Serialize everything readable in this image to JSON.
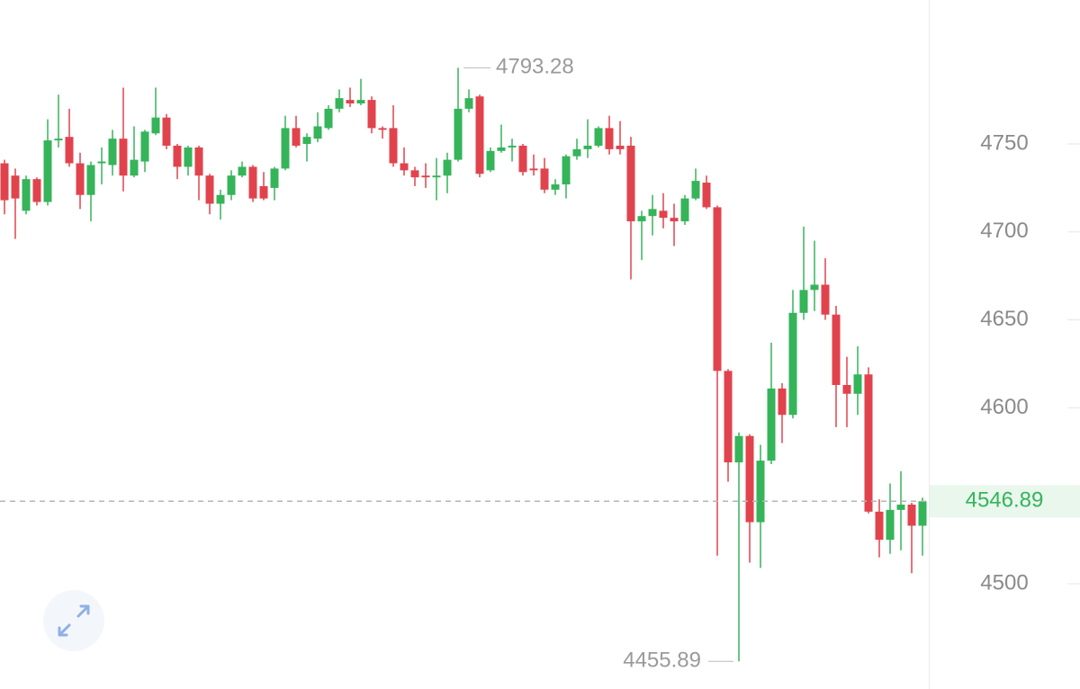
{
  "chart_data": {
    "type": "candlestick",
    "ylim": [
      4440.2,
      4831.8
    ],
    "yticks": [
      4500,
      4550,
      4600,
      4650,
      4700,
      4750
    ],
    "up_color": "#35b45a",
    "down_color": "#e1434d",
    "open": [
      4739,
      4732,
      4712,
      4730,
      4717,
      4752,
      4754,
      4739,
      4721,
      4739,
      4738,
      4753,
      4732,
      4740,
      4756,
      4765,
      4749,
      4737,
      4748,
      4732,
      4716,
      4721,
      4732,
      4737,
      4726,
      4725,
      4736,
      4759,
      4750,
      4753,
      4759,
      4770,
      4775,
      4773,
      4775,
      4759,
      4759,
      4739,
      4735,
      4732,
      4731,
      4732,
      4741,
      4770,
      4777,
      4735,
      4746,
      4748,
      4749,
      4736,
      4736,
      4724,
      4727,
      4743,
      4747,
      4749,
      4759,
      4749,
      4749,
      4706,
      4709,
      4712,
      4708,
      4706,
      4719,
      4728,
      4714,
      4621,
      4569,
      4584,
      4535,
      4570,
      4611,
      4596,
      4654,
      4667,
      4670,
      4653,
      4613,
      4608,
      4619,
      4541,
      4525,
      4542,
      4545,
      4533
    ],
    "high": [
      4741,
      4736,
      4732,
      4731,
      4764,
      4778,
      4770,
      4745,
      4740,
      4748,
      4758,
      4782,
      4760,
      4758,
      4782,
      4767,
      4750,
      4749,
      4749,
      4733,
      4724,
      4735,
      4740,
      4738,
      4734,
      4737,
      4766,
      4766,
      4756,
      4768,
      4772,
      4781,
      4782,
      4787,
      4777,
      4760,
      4772,
      4748,
      4737,
      4739,
      4742,
      4745,
      4793.28,
      4781,
      4778,
      4748,
      4761,
      4753,
      4750,
      4744,
      4742,
      4730,
      4744,
      4753,
      4764,
      4760,
      4766,
      4763,
      4754,
      4712,
      4721,
      4722,
      4716,
      4721,
      4736,
      4732,
      4715,
      4622,
      4586,
      4585,
      4579,
      4637,
      4614,
      4667,
      4703,
      4695,
      4685,
      4658,
      4629,
      4635,
      4623,
      4548,
      4557,
      4564,
      4546,
      4549
    ],
    "low": [
      4710,
      4696,
      4710,
      4715,
      4715,
      4748,
      4737,
      4713,
      4706,
      4727,
      4732,
      4723,
      4731,
      4734,
      4755,
      4747,
      4730,
      4732,
      4718,
      4710,
      4707,
      4718,
      4731,
      4717,
      4718,
      4718,
      4735,
      4748,
      4740,
      4751,
      4758,
      4768,
      4771,
      4772,
      4756,
      4753,
      4737,
      4732,
      4726,
      4725,
      4718,
      4722,
      4740,
      4768,
      4731,
      4734,
      4745,
      4740,
      4732,
      4732,
      4722,
      4721,
      4719,
      4741,
      4742,
      4748,
      4744,
      4744,
      4673,
      4684,
      4698,
      4702,
      4692,
      4704,
      4718,
      4713,
      4516,
      4558,
      4455.89,
      4512,
      4509,
      4568,
      4580,
      4594,
      4650,
      4655,
      4650,
      4589,
      4589,
      4596,
      4540,
      4515,
      4517,
      4519,
      4506,
      4516
    ],
    "close": [
      4718,
      4719,
      4730,
      4717,
      4752,
      4753,
      4739,
      4721,
      4738,
      4740,
      4753,
      4732,
      4741,
      4757,
      4765,
      4749,
      4737,
      4748,
      4732,
      4716,
      4721,
      4732,
      4737,
      4719,
      4719,
      4736,
      4759,
      4749,
      4754,
      4760,
      4770,
      4776,
      4773,
      4775,
      4759,
      4758,
      4739,
      4735,
      4731,
      4731,
      4732,
      4741,
      4770,
      4776,
      4733,
      4746,
      4748,
      4749,
      4734,
      4735,
      4724,
      4727,
      4743,
      4747,
      4749,
      4759,
      4747,
      4747,
      4706,
      4709,
      4713,
      4708,
      4706,
      4719,
      4729,
      4714,
      4621,
      4569,
      4584,
      4535,
      4570,
      4611,
      4596,
      4654,
      4667,
      4670,
      4653,
      4613,
      4608,
      4619,
      4541,
      4525,
      4542,
      4545,
      4533,
      4546.89
    ]
  }
}
